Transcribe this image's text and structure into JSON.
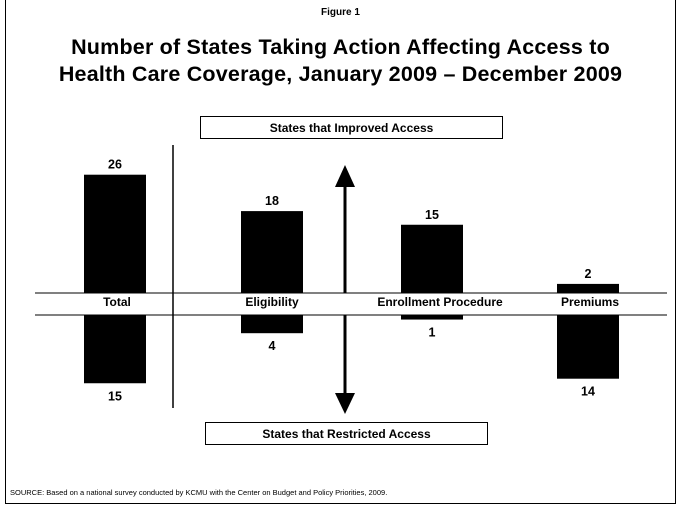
{
  "figure_label": "Figure 1",
  "title_line1": "Number of States Taking Action Affecting Access to",
  "title_line2": "Health Care Coverage, January 2009 – December 2009",
  "legend_top": "States that Improved Access",
  "legend_bottom": "States that Restricted Access",
  "source": "SOURCE: Based on a national survey conducted by KCMU with the Center on Budget and Policy Priorities, 2009.",
  "colors": {
    "bar": "#000000",
    "background": "#ffffff"
  },
  "chart_data": {
    "type": "bar",
    "categories": [
      "Total",
      "Eligibility",
      "Enrollment Procedure",
      "Premiums"
    ],
    "series": [
      {
        "values": [
          26,
          18,
          15,
          2
        ]
      },
      {
        "values": [
          15,
          4,
          1,
          14
        ]
      }
    ],
    "ylim": [
      -16,
      27
    ],
    "grid": false,
    "legend": "none"
  }
}
